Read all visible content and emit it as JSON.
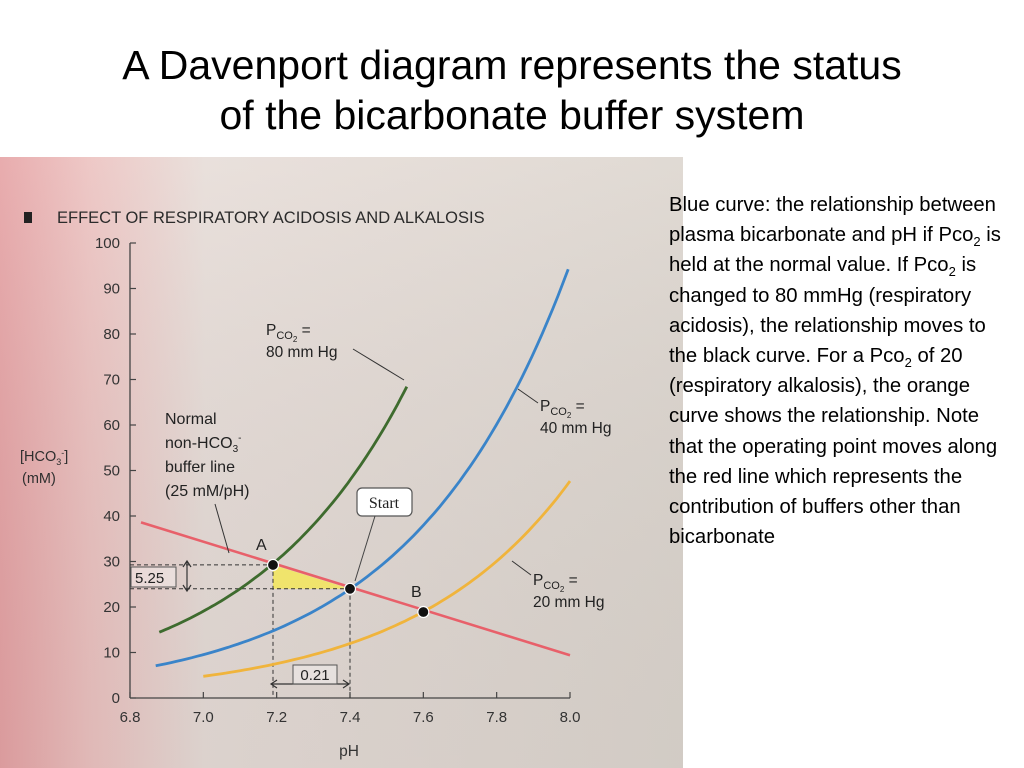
{
  "slide": {
    "title_line1": "A Davenport diagram represents the status",
    "title_line2": "of the bicarbonate buffer system"
  },
  "notes": {
    "parts": [
      "Blue curve: the relationship between plasma bicarbonate and pH if Pco",
      "2",
      " is held at the normal value.  If Pco",
      "2",
      " is changed to 80 mmHg (respiratory acidosis), the relationship moves to the black curve.  For a Pco",
      "2",
      " of 20 (respiratory alkalosis), the orange curve shows the relationship. Note that the operating point moves along the red line which represents the contribution of buffers other than bicarbonate"
    ]
  },
  "figure": {
    "panel_letter": "A",
    "panel_title": "EFFECT OF RESPIRATORY ACIDOSIS AND ALKALOSIS",
    "ylabel_line1": "[HCO",
    "ylabel_sub": "3",
    "ylabel_sup": "-",
    "ylabel_end": "]",
    "ylabel_line2": "(mM)",
    "xlabel": "pH",
    "label_pco2_80_a": "P",
    "label_pco2_80_b": "CO",
    "label_pco2_80_c": "2",
    "label_pco2_80_d": " =",
    "label_pco2_80_line2": "80 mm Hg",
    "label_pco2_40_a": "P",
    "label_pco2_40_b": "CO",
    "label_pco2_40_c": "2",
    "label_pco2_40_d": " =",
    "label_pco2_40_line2": "40 mm Hg",
    "label_pco2_20_a": "P",
    "label_pco2_20_b": "CO",
    "label_pco2_20_c": "2",
    "label_pco2_20_d": " =",
    "label_pco2_20_line2": "20 mm Hg",
    "normal_line1": "Normal",
    "normal_line2a": "non-HCO",
    "normal_line2b": "3",
    "normal_line2c": "-",
    "normal_line3": "buffer line",
    "normal_line4": "(25 mM/pH)",
    "start_label": "Start",
    "point_a": "A",
    "point_b": "B",
    "delta_hco3": "5.25",
    "delta_ph": "0.21"
  },
  "colors": {
    "pco2_80": "#3e6b2e",
    "pco2_40": "#3a84c9",
    "pco2_20": "#f0b43c",
    "buffer_line": "#e8606a",
    "triangle": "#f3e65a"
  },
  "chart_data": {
    "type": "line",
    "title": "EFFECT OF RESPIRATORY ACIDOSIS AND ALKALOSIS",
    "xlabel": "pH",
    "ylabel": "[HCO3-] (mM)",
    "xlim": [
      6.8,
      8.0
    ],
    "ylim": [
      0,
      100
    ],
    "x_ticks": [
      "6.8",
      "7.0",
      "7.2",
      "7.4",
      "7.6",
      "7.8",
      "8.0"
    ],
    "y_ticks": [
      "0",
      "10",
      "20",
      "30",
      "40",
      "50",
      "60",
      "70",
      "80",
      "90",
      "100"
    ],
    "series": [
      {
        "name": "PCO2 = 80 mm Hg",
        "color_key": "pco2_80",
        "pco2_mmHg": 80,
        "x_range": [
          6.88,
          7.555
        ]
      },
      {
        "name": "PCO2 = 40 mm Hg",
        "color_key": "pco2_40",
        "pco2_mmHg": 40,
        "x_range": [
          6.87,
          7.995
        ]
      },
      {
        "name": "PCO2 = 20 mm Hg",
        "color_key": "pco2_20",
        "pco2_mmHg": 20,
        "x_range": [
          7.0,
          8.0
        ]
      }
    ],
    "buffer_line": {
      "name": "Normal non-HCO3- buffer line (25 mM/pH)",
      "slope": -25,
      "x": [
        6.83,
        8.0
      ],
      "y": [
        38.6,
        9.4
      ]
    },
    "points": [
      {
        "label": "A",
        "x": 7.19,
        "y": 29.25
      },
      {
        "label": "Start",
        "x": 7.4,
        "y": 24.0
      },
      {
        "label": "B",
        "x": 7.6,
        "y": 18.9
      }
    ],
    "annotations": {
      "delta_hco3_mM": 5.25,
      "delta_pH": 0.21
    },
    "grid": false,
    "legend": "none"
  }
}
